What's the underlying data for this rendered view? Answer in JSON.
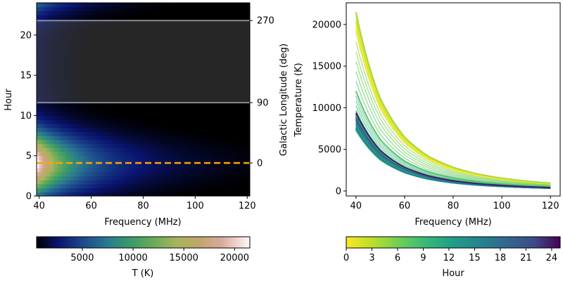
{
  "chart_data": [
    {
      "type": "heatmap",
      "xlabel": "Frequency (MHz)",
      "ylabel": "Hour",
      "xlim": [
        39,
        121
      ],
      "ylim": [
        0,
        24
      ],
      "xticks": [
        40,
        60,
        80,
        100,
        120
      ],
      "yticks": [
        0,
        5,
        10,
        15,
        20
      ],
      "right_axis": {
        "label": "Galactic Longitude (deg)",
        "ticks": [
          {
            "hour": 4.1,
            "label": "0"
          },
          {
            "hour": 11.6,
            "label": "90"
          },
          {
            "hour": 21.8,
            "label": "270"
          }
        ]
      },
      "reference_lines": [
        {
          "hour": 4.1,
          "style": "dashed",
          "color": "#ffa500"
        },
        {
          "hour": 11.6,
          "style": "solid",
          "color": "#9aa0ac"
        },
        {
          "hour": 21.8,
          "style": "solid",
          "color": "#9aa0ac"
        }
      ],
      "shaded_band_hours": [
        11.6,
        21.8
      ],
      "colorbar": {
        "label": "T (K)",
        "range": [
          500,
          21500
        ],
        "ticks": [
          5000,
          10000,
          15000,
          20000
        ],
        "colormap": "gist_earth"
      }
    },
    {
      "type": "line",
      "xlabel": "Frequency (MHz)",
      "ylabel": "Temperature (K)",
      "xlim": [
        36,
        124
      ],
      "ylim": [
        -600,
        22600
      ],
      "xticks": [
        40,
        60,
        80,
        100,
        120
      ],
      "yticks": [
        0,
        5000,
        10000,
        15000,
        20000
      ],
      "x": [
        40,
        50,
        60,
        70,
        80,
        90,
        100,
        110,
        120
      ],
      "series": [
        {
          "name": "Hour 0",
          "values": [
            19500,
            10100,
            5900,
            3800,
            2600,
            1900,
            1420,
            1100,
            870
          ]
        },
        {
          "name": "Hour 4",
          "values": [
            21500,
            11150,
            6500,
            4150,
            2850,
            2050,
            1550,
            1200,
            950
          ]
        },
        {
          "name": "Hour 8",
          "values": [
            12000,
            6200,
            3600,
            2300,
            1580,
            1140,
            860,
            670,
            530
          ]
        },
        {
          "name": "Hour 12",
          "values": [
            7300,
            3750,
            2200,
            1400,
            960,
            700,
            530,
            410,
            320
          ]
        },
        {
          "name": "Hour 16",
          "values": [
            7600,
            3900,
            2280,
            1460,
            1000,
            720,
            550,
            425,
            335
          ]
        },
        {
          "name": "Hour 20",
          "values": [
            8600,
            4450,
            2600,
            1660,
            1140,
            820,
            620,
            480,
            380
          ]
        },
        {
          "name": "Hour 24",
          "values": [
            9400,
            4850,
            2840,
            1810,
            1240,
            895,
            680,
            525,
            415
          ]
        }
      ],
      "colorbar": {
        "label": "Hour",
        "range": [
          0,
          25
        ],
        "ticks": [
          0,
          3,
          6,
          9,
          12,
          15,
          18,
          21,
          24
        ],
        "colormap": "viridis_r"
      }
    }
  ]
}
